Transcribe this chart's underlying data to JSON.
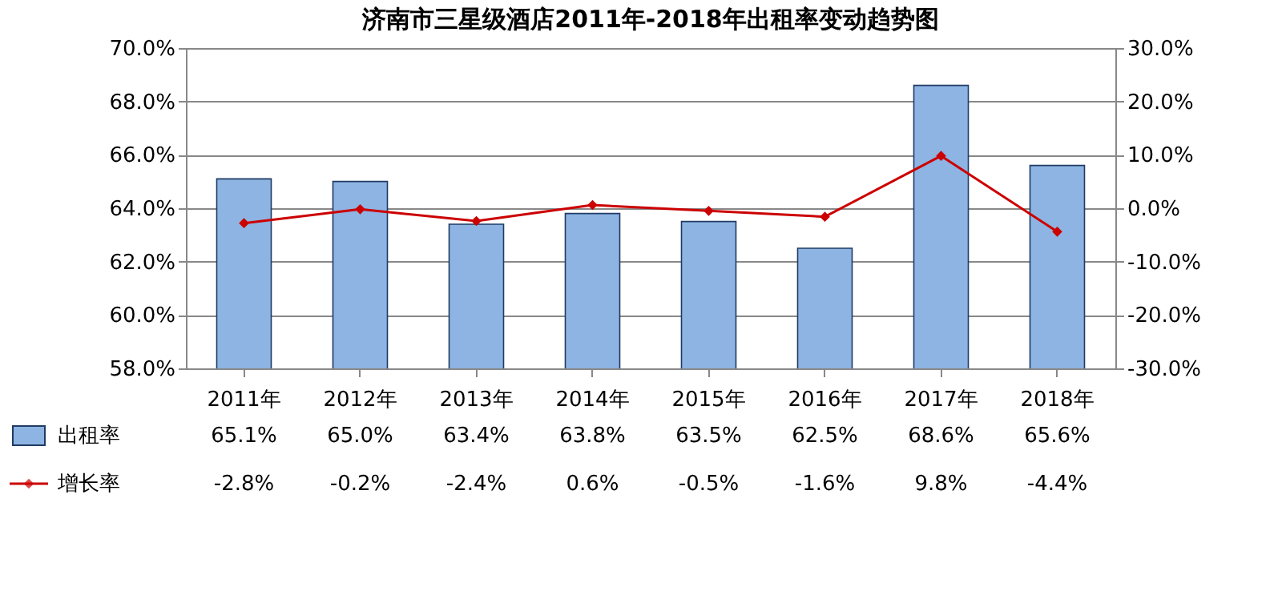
{
  "chart_data": {
    "type": "bar",
    "title": "济南市三星级酒店2011年-2018年出租率变动趋势图",
    "categories": [
      "2011年",
      "2012年",
      "2013年",
      "2014年",
      "2015年",
      "2016年",
      "2017年",
      "2018年"
    ],
    "series": [
      {
        "name": "出租率",
        "color": "#8db4e2",
        "values": [
          65.1,
          65.0,
          63.4,
          63.8,
          63.5,
          62.5,
          68.6,
          65.6
        ],
        "value_labels": [
          "65.1%",
          "65.0%",
          "63.4%",
          "63.8%",
          "63.5%",
          "62.5%",
          "68.6%",
          "65.6%"
        ]
      },
      {
        "name": "增长率",
        "type": "line",
        "axis": "y2",
        "color": "#cc0000",
        "marker": "diamond",
        "values": [
          -2.8,
          -0.2,
          -2.4,
          0.6,
          -0.5,
          -1.6,
          9.8,
          -4.4
        ],
        "value_labels": [
          "-2.8%",
          "-0.2%",
          "-2.4%",
          "0.6%",
          "-0.5%",
          "-1.6%",
          "9.8%",
          "-4.4%"
        ]
      }
    ],
    "ylim": [
      58,
      70
    ],
    "yticks": [
      {
        "value": 58,
        "label": "58.0%"
      },
      {
        "value": 60,
        "label": "60.0%"
      },
      {
        "value": 62,
        "label": "62.0%"
      },
      {
        "value": 64,
        "label": "64.0%"
      },
      {
        "value": 66,
        "label": "66.0%"
      },
      {
        "value": 68,
        "label": "68.0%"
      },
      {
        "value": 70,
        "label": "70.0%"
      }
    ],
    "y2lim": [
      -30,
      30
    ],
    "y2ticks": [
      {
        "value": -30,
        "label": "-30.0%"
      },
      {
        "value": -20,
        "label": "-20.0%"
      },
      {
        "value": -10,
        "label": "-10.0%"
      },
      {
        "value": 0,
        "label": "0.0%"
      },
      {
        "value": 10,
        "label": "10.0%"
      },
      {
        "value": 20,
        "label": "20.0%"
      },
      {
        "value": 30,
        "label": "30.0%"
      }
    ],
    "grid": "y",
    "legend": "bottom left"
  }
}
